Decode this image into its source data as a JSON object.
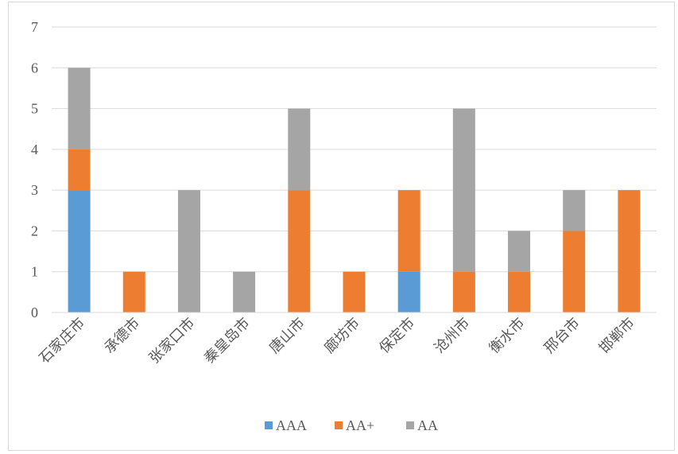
{
  "chart_data": {
    "type": "bar",
    "stacked": true,
    "categories": [
      "石家庄市",
      "承德市",
      "张家口市",
      "秦皇岛市",
      "唐山市",
      "廊坊市",
      "保定市",
      "沧州市",
      "衡水市",
      "邢台市",
      "邯郸市"
    ],
    "series": [
      {
        "name": "AAA",
        "color": "#5b9bd5",
        "values": [
          3,
          0,
          0,
          0,
          0,
          0,
          1,
          0,
          0,
          0,
          0
        ]
      },
      {
        "name": "AA+",
        "color": "#ed7d31",
        "values": [
          1,
          1,
          0,
          0,
          3,
          1,
          2,
          1,
          1,
          2,
          3
        ]
      },
      {
        "name": "AA",
        "color": "#a5a5a5",
        "values": [
          2,
          0,
          3,
          1,
          2,
          0,
          0,
          4,
          1,
          1,
          0
        ]
      }
    ],
    "ylim": [
      0,
      7
    ],
    "yticks": [
      0,
      1,
      2,
      3,
      4,
      5,
      6,
      7
    ],
    "grid": true,
    "legend": "bottom"
  }
}
